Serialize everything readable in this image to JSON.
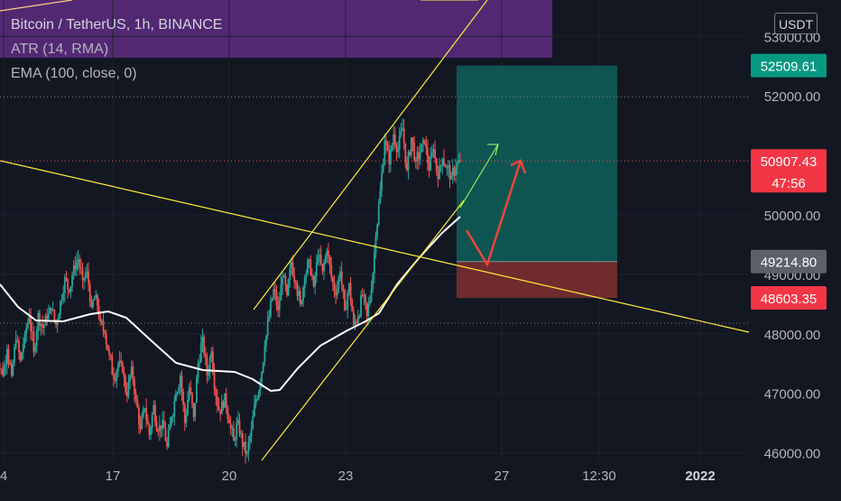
{
  "legend": {
    "symbol": "Bitcoin / TetherUS, 1h, BINANCE",
    "indicator_atr": "ATR (14, RMA)",
    "indicator_ema": "EMA (100, close, 0)"
  },
  "currency_button": "USDT",
  "colors": {
    "background": "#131722",
    "up": "#26a69a",
    "down": "#ef5350",
    "ema": "#ffffff",
    "trendline": "#ffeb3b",
    "profit_zone": "#0e6b63",
    "loss_zone": "#7a2d30",
    "legend_box": "#6a2f8f"
  },
  "chart_data": {
    "type": "candlestick",
    "y_axis": {
      "ticks": [
        "53000.00",
        "52000.00",
        "50000.00",
        "49000.00",
        "48000.00",
        "47000.00",
        "46000.00"
      ],
      "tick_values": [
        53000,
        52000,
        50000,
        49000,
        48000,
        47000,
        46000
      ],
      "range": [
        45900,
        53250
      ]
    },
    "x_axis": {
      "ticks": [
        "4",
        "17",
        "20",
        "23",
        "27",
        "12:30",
        "2022"
      ]
    },
    "price_labels": [
      {
        "text": "52509.61",
        "value": 52509.61,
        "kind": "take-profit"
      },
      {
        "text": "50907.43",
        "value": 50907.43,
        "kind": "last-price",
        "countdown": "47:56"
      },
      {
        "text": "49214.80",
        "value": 49214.8,
        "kind": "entry"
      },
      {
        "text": "48603.35",
        "value": 48603.35,
        "kind": "stop-loss"
      }
    ],
    "position": {
      "direction": "long",
      "entry": 49214.8,
      "take_profit": 52509.61,
      "stop_loss": 48603.35
    },
    "close_series": [
      47500,
      47300,
      47750,
      47300,
      47900,
      47550,
      48000,
      48300,
      47700,
      48350,
      48100,
      48250,
      48400,
      48150,
      48550,
      48950,
      48700,
      49150,
      49250,
      48900,
      49050,
      48450,
      48650,
      48200,
      48000,
      47650,
      47250,
      47500,
      47350,
      46950,
      47450,
      46900,
      46400,
      46750,
      46300,
      46800,
      46350,
      46550,
      46100,
      46600,
      47000,
      47300,
      46500,
      47100,
      46600,
      47500,
      47950,
      47300,
      47700,
      46950,
      46650,
      47000,
      46500,
      46200,
      46550,
      46100,
      46000,
      46400,
      46900,
      47200,
      47800,
      48300,
      48750,
      48400,
      48950,
      48650,
      49200,
      48850,
      48500,
      48950,
      49250,
      48800,
      49300,
      49050,
      49400,
      48950,
      48650,
      49050,
      48400,
      48850,
      48150,
      48300,
      48650,
      48300,
      48750,
      49650,
      50400,
      51250,
      50850,
      51350,
      51100,
      51450,
      50750,
      51300,
      50900,
      51050,
      51200,
      50750,
      51100,
      50600,
      50950,
      50800,
      50650,
      50800,
      50907
    ]
  }
}
